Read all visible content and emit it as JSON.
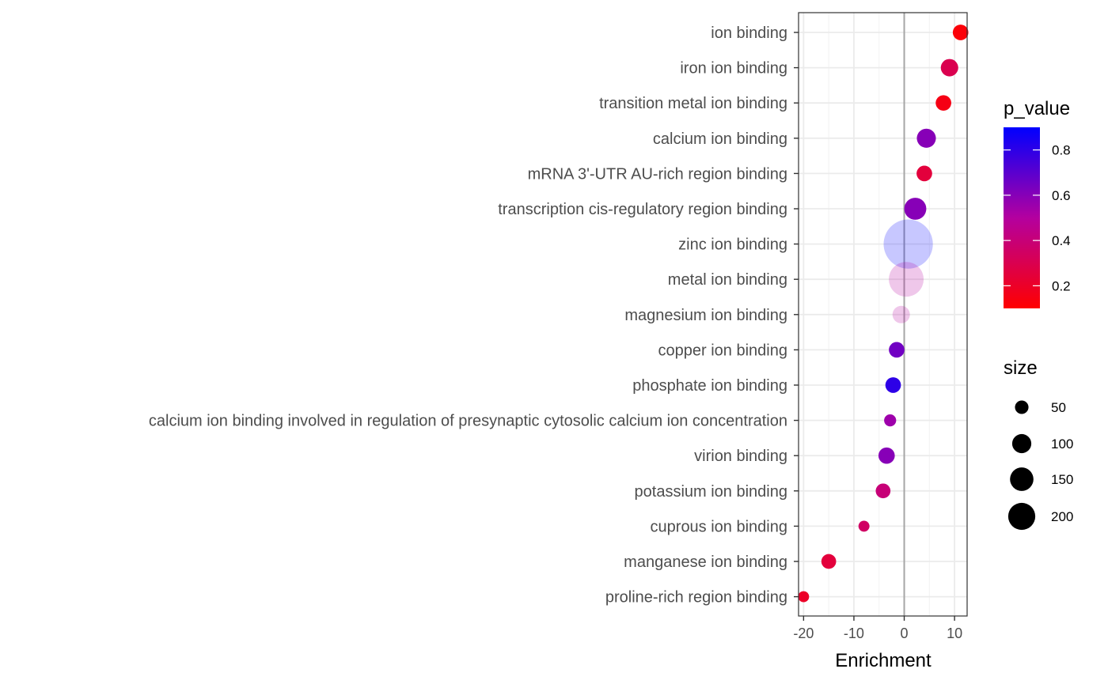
{
  "chart_data": {
    "type": "scatter",
    "xlabel": "Enrichment",
    "ylabel": "",
    "xlim": [
      -21,
      12.5
    ],
    "xticks": [
      -20,
      -10,
      0,
      10
    ],
    "xtick_labels": [
      "-20",
      "-10",
      "0",
      "10"
    ],
    "categories": [
      "ion binding",
      "iron ion binding",
      "transition metal ion binding",
      "calcium ion binding",
      "mRNA 3'-UTR AU-rich region binding",
      "transcription cis-regulatory region binding",
      "zinc ion binding",
      "metal ion binding",
      "magnesium ion binding",
      "copper ion binding",
      "phosphate ion binding",
      "calcium ion binding involved in regulation of presynaptic cytosolic calcium ion concentration",
      "virion binding",
      "potassium ion binding",
      "cuprous ion binding",
      "manganese ion binding",
      "proline-rich region binding"
    ],
    "points": [
      {
        "enrichment": 11.2,
        "p_value": 0.12,
        "size": 20,
        "alpha": 1.0
      },
      {
        "enrichment": 9.0,
        "p_value": 0.3,
        "size": 25,
        "alpha": 1.0
      },
      {
        "enrichment": 7.8,
        "p_value": 0.15,
        "size": 20,
        "alpha": 1.0
      },
      {
        "enrichment": 4.4,
        "p_value": 0.6,
        "size": 30,
        "alpha": 1.0
      },
      {
        "enrichment": 4.0,
        "p_value": 0.25,
        "size": 20,
        "alpha": 1.0
      },
      {
        "enrichment": 2.2,
        "p_value": 0.6,
        "size": 40,
        "alpha": 1.0
      },
      {
        "enrichment": 0.8,
        "p_value": 0.9,
        "size": 200,
        "alpha": 0.22
      },
      {
        "enrichment": 0.4,
        "p_value": 0.5,
        "size": 100,
        "alpha": 0.22
      },
      {
        "enrichment": -0.6,
        "p_value": 0.5,
        "size": 25,
        "alpha": 0.22
      },
      {
        "enrichment": -1.5,
        "p_value": 0.65,
        "size": 20,
        "alpha": 1.0
      },
      {
        "enrichment": -2.2,
        "p_value": 0.8,
        "size": 20,
        "alpha": 1.0
      },
      {
        "enrichment": -2.8,
        "p_value": 0.55,
        "size": 12,
        "alpha": 1.0
      },
      {
        "enrichment": -3.5,
        "p_value": 0.6,
        "size": 22,
        "alpha": 1.0
      },
      {
        "enrichment": -4.2,
        "p_value": 0.4,
        "size": 18,
        "alpha": 1.0
      },
      {
        "enrichment": -8.0,
        "p_value": 0.35,
        "size": 10,
        "alpha": 1.0
      },
      {
        "enrichment": -15.0,
        "p_value": 0.25,
        "size": 18,
        "alpha": 1.0
      },
      {
        "enrichment": -20.0,
        "p_value": 0.2,
        "size": 10,
        "alpha": 1.0
      }
    ],
    "color_legend": {
      "title": "p_value",
      "low_color": "#ff0000",
      "high_color": "#0000ff",
      "range": [
        0.1,
        0.9
      ],
      "breaks": [
        0.2,
        0.4,
        0.6,
        0.8
      ],
      "break_labels": [
        "0.2",
        "0.4",
        "0.6",
        "0.8"
      ]
    },
    "size_legend": {
      "title": "size",
      "breaks": [
        50,
        100,
        150,
        200
      ],
      "break_labels": [
        "50",
        "100",
        "150",
        "200"
      ]
    },
    "reference_line_x": 0,
    "grid": true,
    "legend_position": "right"
  }
}
